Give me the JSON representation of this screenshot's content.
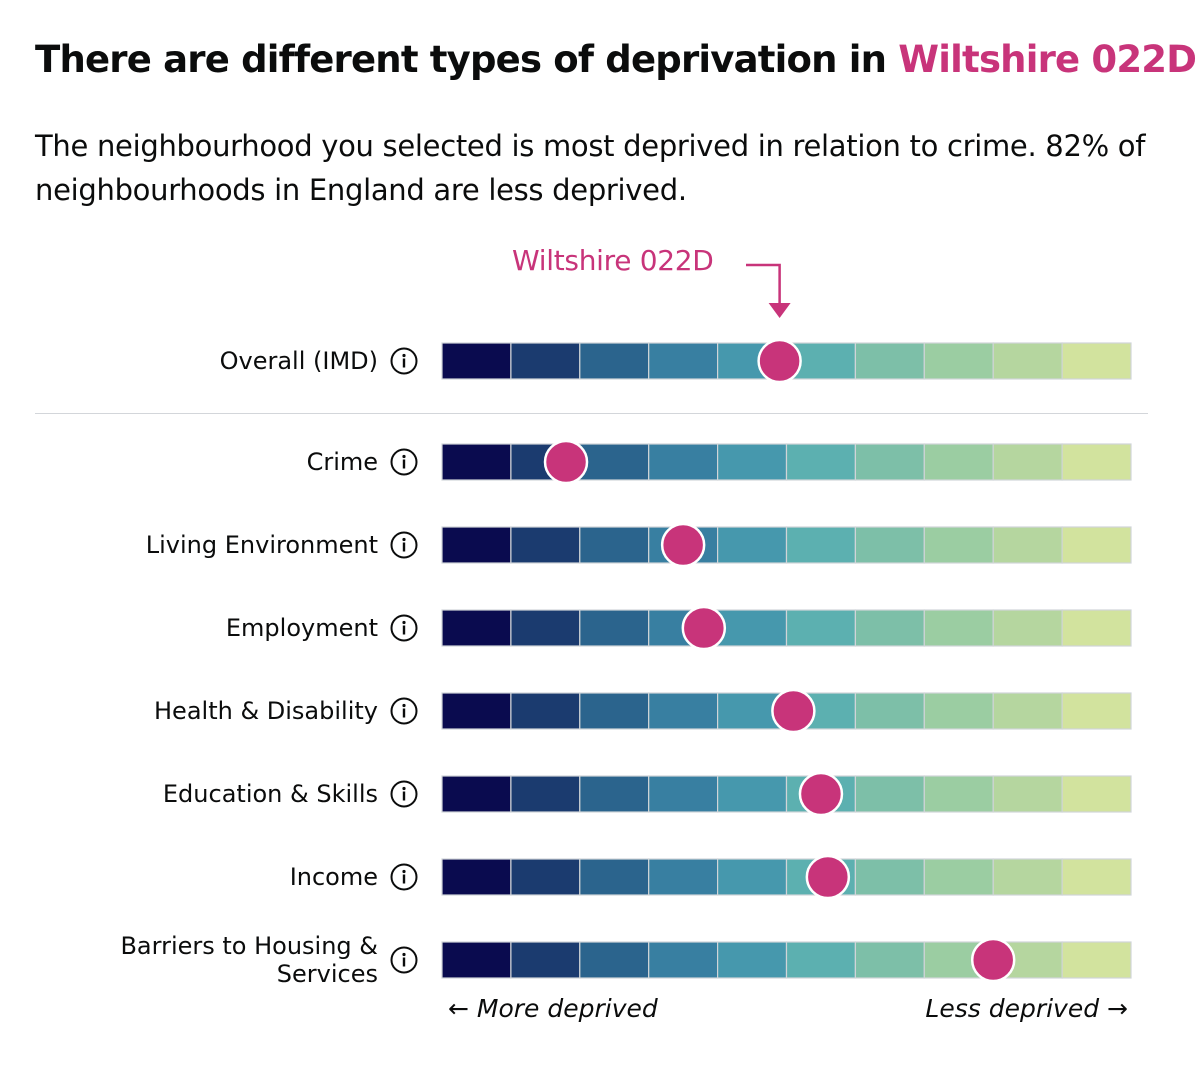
{
  "heading": {
    "prefix": "There are different types of deprivation in ",
    "area_name": "Wiltshire 022D"
  },
  "lede": "The neighbourhood you selected is most deprived in relation to crime. 82% of neighbourhoods in England are less deprived.",
  "colors": {
    "accent": "#c8347a",
    "scale": [
      "#0a0b4f",
      "#1b3b6f",
      "#2b648d",
      "#387fa1",
      "#4698ad",
      "#5cb0b0",
      "#7dbfa8",
      "#9bcda2",
      "#b5d69f",
      "#d2e39e"
    ]
  },
  "chart_data": {
    "type": "strip",
    "title": "There are different types of deprivation in Wiltshire 022D",
    "marker_label": "Wiltshire 022D",
    "scale_deciles": 10,
    "x_range": [
      0,
      1
    ],
    "xlabel_left": "More deprived",
    "xlabel_right": "Less deprived",
    "overall": {
      "label": "Overall (IMD)",
      "value": 0.49
    },
    "domains": [
      {
        "label": "Crime",
        "value": 0.18
      },
      {
        "label": "Living Environment",
        "value": 0.35
      },
      {
        "label": "Employment",
        "value": 0.38
      },
      {
        "label": "Health & Disability",
        "value": 0.51
      },
      {
        "label": "Education & Skills",
        "value": 0.55
      },
      {
        "label": "Income",
        "value": 0.56
      },
      {
        "label": "Barriers to Housing & Services",
        "value": 0.8
      }
    ]
  },
  "labels": {
    "overall": "Overall (IMD)",
    "crime": "Crime",
    "living": "Living Environment",
    "employment": "Employment",
    "health": "Health & Disability",
    "education": "Education & Skills",
    "income": "Income",
    "barriers_line1": "Barriers to Housing &",
    "barriers_line2": "Services"
  },
  "axis": {
    "left": "← More deprived",
    "right": "Less deprived →"
  }
}
